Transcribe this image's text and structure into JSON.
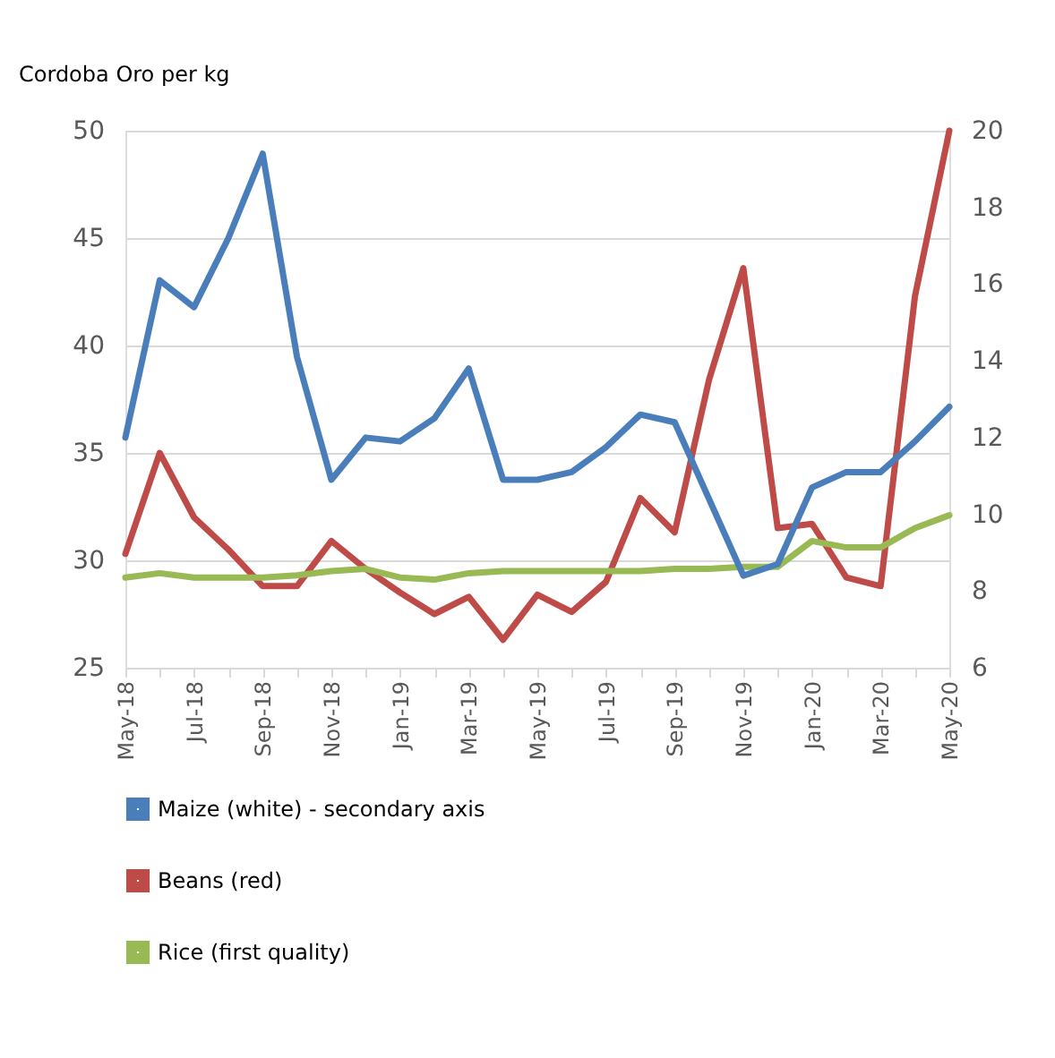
{
  "chart_data": {
    "type": "line",
    "ylabel": "Cordoba Oro per kg",
    "categories": [
      "May-18",
      null,
      "Jul-18",
      null,
      "Sep-18",
      null,
      "Nov-18",
      null,
      "Jan-19",
      null,
      "Mar-19",
      null,
      "May-19",
      null,
      "Jul-19",
      null,
      "Sep-19",
      null,
      "Nov-19",
      null,
      "Jan-20",
      null,
      "Mar-20",
      null,
      "May-20"
    ],
    "series": [
      {
        "name": "Maize (white) - secondary axis",
        "color": "#4a7ebb",
        "axis": "y2",
        "values": [
          12.0,
          16.1,
          15.4,
          17.2,
          19.4,
          14.1,
          10.9,
          12.0,
          11.9,
          12.5,
          13.8,
          10.9,
          10.9,
          11.1,
          11.75,
          12.6,
          12.4,
          10.4,
          8.4,
          8.7,
          10.7,
          11.1,
          11.1,
          11.9,
          12.8
        ]
      },
      {
        "name": "Beans (red)",
        "color": "#be4b48",
        "values": [
          30.3,
          35.0,
          32.0,
          30.5,
          28.8,
          28.8,
          30.9,
          29.6,
          28.5,
          27.5,
          28.3,
          26.3,
          28.4,
          27.6,
          29.0,
          32.9,
          31.3,
          38.4,
          43.6,
          31.5,
          31.7,
          29.2,
          28.8,
          42.3,
          50.0
        ]
      },
      {
        "name": "Rice (first quality)",
        "color": "#98b954",
        "values": [
          29.2,
          29.4,
          29.2,
          29.2,
          29.2,
          29.3,
          29.5,
          29.6,
          29.2,
          29.1,
          29.4,
          29.5,
          29.5,
          29.5,
          29.5,
          29.5,
          29.6,
          29.6,
          29.7,
          29.7,
          30.9,
          30.6,
          30.6,
          31.5,
          32.1
        ]
      }
    ],
    "ylim": [
      25,
      50
    ],
    "yticks": [
      25,
      30,
      35,
      40,
      45,
      50
    ],
    "y2lim": [
      6,
      20
    ],
    "y2ticks": [
      6,
      8,
      10,
      12,
      14,
      16,
      18,
      20
    ],
    "grid": "y",
    "legend": "bottom",
    "line_style": "solid",
    "marker": "none"
  }
}
